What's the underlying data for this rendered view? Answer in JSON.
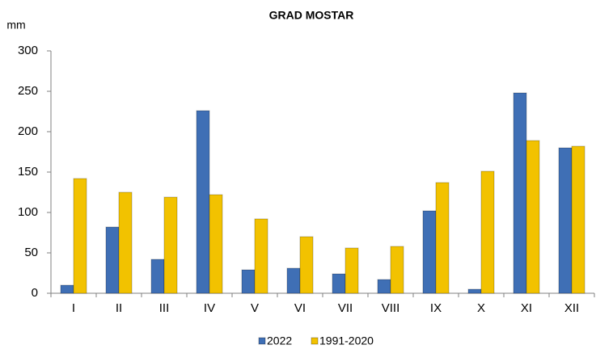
{
  "chart_data": {
    "type": "bar",
    "title": "GRAD MOSTAR",
    "y_label": "mm",
    "categories": [
      "I",
      "II",
      "III",
      "IV",
      "V",
      "VI",
      "VII",
      "VIII",
      "IX",
      "X",
      "XI",
      "XII"
    ],
    "series": [
      {
        "name": "2022",
        "color": "#3f6fb5",
        "values": [
          10,
          82,
          42,
          226,
          29,
          31,
          24,
          17,
          102,
          5,
          248,
          180
        ]
      },
      {
        "name": "1991-2020",
        "color": "#f2c200",
        "values": [
          142,
          125,
          119,
          122,
          92,
          70,
          56,
          58,
          137,
          151,
          189,
          182
        ]
      }
    ],
    "ylim": [
      0,
      300
    ],
    "yticks": [
      0,
      50,
      100,
      150,
      200,
      250,
      300
    ],
    "grid": false,
    "legend": "bottom"
  }
}
